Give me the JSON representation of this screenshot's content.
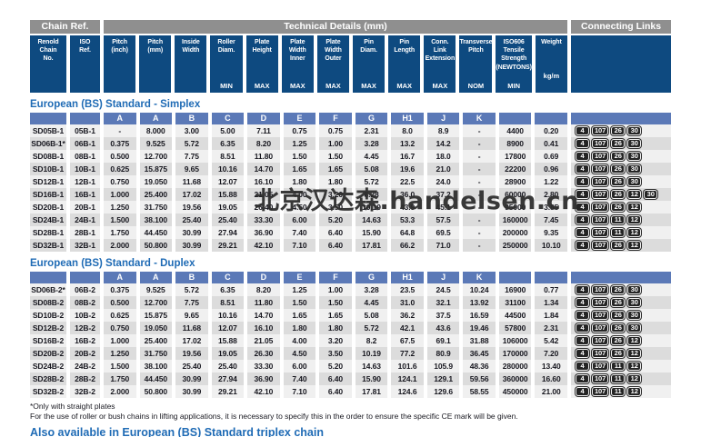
{
  "watermark": "北京汉达森.handelsen.cn",
  "colors": {
    "navy": "#0e4a80",
    "group_gray": "#8f8f8f",
    "letter_blue": "#5b79b7",
    "row_light": "#f0f0f0",
    "row_dark": "#dcdcdc",
    "title_blue": "#1f6bb5",
    "badge_bg": "#242424",
    "cell_text": "#16161e"
  },
  "table": {
    "groups": {
      "chain_ref": "Chain Ref.",
      "technical": "Technical Details (mm)",
      "connecting": "Connecting Links"
    },
    "columns": [
      {
        "title": "Renold\nChain\nNo.",
        "sub": "",
        "letter": ""
      },
      {
        "title": "ISO\nRef.",
        "sub": "",
        "letter": ""
      },
      {
        "title": "Pitch\n(inch)",
        "sub": "",
        "letter": "A"
      },
      {
        "title": "Pitch\n(mm)",
        "sub": "",
        "letter": "A"
      },
      {
        "title": "Inside\nWidth",
        "sub": "",
        "letter": "B"
      },
      {
        "title": "Roller\nDiam.",
        "sub": "MIN",
        "letter": "C"
      },
      {
        "title": "Plate\nHeight",
        "sub": "MAX",
        "letter": "D"
      },
      {
        "title": "Plate\nWidth\nInner",
        "sub": "MAX",
        "letter": "E"
      },
      {
        "title": "Plate\nWidth\nOuter",
        "sub": "MAX",
        "letter": "F"
      },
      {
        "title": "Pin\nDiam.",
        "sub": "MAX",
        "letter": "G"
      },
      {
        "title": "Pin\nLength",
        "sub": "MAX",
        "letter": "H1"
      },
      {
        "title": "Conn. Link\nExtension",
        "sub": "MAX",
        "letter": "J"
      },
      {
        "title": "Transverse\nPitch",
        "sub": "NOM",
        "letter": "K"
      },
      {
        "title": "ISO606\nTensile\nStrength\n(NEWTONS)",
        "sub": "MIN",
        "letter": ""
      },
      {
        "title": "Weight",
        "sub": "kg/m",
        "letter": "",
        "raise_sub": true
      }
    ]
  },
  "sections": [
    {
      "title": "European (BS) Standard - Simplex",
      "rows": [
        {
          "chain_no": "SD05B-1",
          "iso": "05B-1",
          "values": [
            "-",
            "8.000",
            "3.00",
            "5.00",
            "7.11",
            "0.75",
            "0.75",
            "2.31",
            "8.0",
            "8.9",
            "-",
            "4400",
            "0.20"
          ],
          "links": [
            "4",
            "107",
            "26",
            "30"
          ]
        },
        {
          "chain_no": "SD06B-1*",
          "iso": "06B-1",
          "values": [
            "0.375",
            "9.525",
            "5.72",
            "6.35",
            "8.20",
            "1.25",
            "1.00",
            "3.28",
            "13.2",
            "14.2",
            "-",
            "8900",
            "0.41"
          ],
          "links": [
            "4",
            "107",
            "26",
            "30"
          ]
        },
        {
          "chain_no": "SD08B-1",
          "iso": "08B-1",
          "values": [
            "0.500",
            "12.700",
            "7.75",
            "8.51",
            "11.80",
            "1.50",
            "1.50",
            "4.45",
            "16.7",
            "18.0",
            "-",
            "17800",
            "0.69"
          ],
          "links": [
            "4",
            "107",
            "26",
            "30"
          ]
        },
        {
          "chain_no": "SD10B-1",
          "iso": "10B-1",
          "values": [
            "0.625",
            "15.875",
            "9.65",
            "10.16",
            "14.70",
            "1.65",
            "1.65",
            "5.08",
            "19.6",
            "21.0",
            "-",
            "22200",
            "0.96"
          ],
          "links": [
            "4",
            "107",
            "26",
            "30"
          ]
        },
        {
          "chain_no": "SD12B-1",
          "iso": "12B-1",
          "values": [
            "0.750",
            "19.050",
            "11.68",
            "12.07",
            "16.10",
            "1.80",
            "1.80",
            "5.72",
            "22.5",
            "24.0",
            "-",
            "28900",
            "1.22"
          ],
          "links": [
            "4",
            "107",
            "26",
            "30"
          ]
        },
        {
          "chain_no": "SD16B-1",
          "iso": "16B-1",
          "values": [
            "1.000",
            "25.400",
            "17.02",
            "15.88",
            "21.05",
            "4.00",
            "3.20",
            "8.28",
            "36.0",
            "37.2",
            "-",
            "60000",
            "2.80"
          ],
          "links": [
            "4",
            "107",
            "26",
            "12",
            "30"
          ]
        },
        {
          "chain_no": "SD20B-1",
          "iso": "20B-1",
          "values": [
            "1.250",
            "31.750",
            "19.56",
            "19.05",
            "26.40",
            "4.50",
            "3.50",
            "10.19",
            "43.9",
            "45.1",
            "-",
            "95000",
            "3.85"
          ],
          "links": [
            "4",
            "107",
            "26",
            "12"
          ]
        },
        {
          "chain_no": "SD24B-1",
          "iso": "24B-1",
          "values": [
            "1.500",
            "38.100",
            "25.40",
            "25.40",
            "33.30",
            "6.00",
            "5.20",
            "14.63",
            "53.3",
            "57.5",
            "-",
            "160000",
            "7.45"
          ],
          "links": [
            "4",
            "107",
            "11",
            "12"
          ]
        },
        {
          "chain_no": "SD28B-1",
          "iso": "28B-1",
          "values": [
            "1.750",
            "44.450",
            "30.99",
            "27.94",
            "36.90",
            "7.40",
            "6.40",
            "15.90",
            "64.8",
            "69.5",
            "-",
            "200000",
            "9.35"
          ],
          "links": [
            "4",
            "107",
            "11",
            "12"
          ]
        },
        {
          "chain_no": "SD32B-1",
          "iso": "32B-1",
          "values": [
            "2.000",
            "50.800",
            "30.99",
            "29.21",
            "42.10",
            "7.10",
            "6.40",
            "17.81",
            "66.2",
            "71.0",
            "-",
            "250000",
            "10.10"
          ],
          "links": [
            "4",
            "107",
            "26",
            "12"
          ]
        }
      ]
    },
    {
      "title": "European (BS) Standard - Duplex",
      "rows": [
        {
          "chain_no": "SD06B-2*",
          "iso": "06B-2",
          "values": [
            "0.375",
            "9.525",
            "5.72",
            "6.35",
            "8.20",
            "1.25",
            "1.00",
            "3.28",
            "23.5",
            "24.5",
            "10.24",
            "16900",
            "0.77"
          ],
          "links": [
            "4",
            "107",
            "26",
            "30"
          ]
        },
        {
          "chain_no": "SD08B-2",
          "iso": "08B-2",
          "values": [
            "0.500",
            "12.700",
            "7.75",
            "8.51",
            "11.80",
            "1.50",
            "1.50",
            "4.45",
            "31.0",
            "32.1",
            "13.92",
            "31100",
            "1.34"
          ],
          "links": [
            "4",
            "107",
            "26",
            "30"
          ]
        },
        {
          "chain_no": "SD10B-2",
          "iso": "10B-2",
          "values": [
            "0.625",
            "15.875",
            "9.65",
            "10.16",
            "14.70",
            "1.65",
            "1.65",
            "5.08",
            "36.2",
            "37.5",
            "16.59",
            "44500",
            "1.84"
          ],
          "links": [
            "4",
            "107",
            "26",
            "30"
          ]
        },
        {
          "chain_no": "SD12B-2",
          "iso": "12B-2",
          "values": [
            "0.750",
            "19.050",
            "11.68",
            "12.07",
            "16.10",
            "1.80",
            "1.80",
            "5.72",
            "42.1",
            "43.6",
            "19.46",
            "57800",
            "2.31"
          ],
          "links": [
            "4",
            "107",
            "26",
            "30"
          ]
        },
        {
          "chain_no": "SD16B-2",
          "iso": "16B-2",
          "values": [
            "1.000",
            "25.400",
            "17.02",
            "15.88",
            "21.05",
            "4.00",
            "3.20",
            "8.2",
            "67.5",
            "69.1",
            "31.88",
            "106000",
            "5.42"
          ],
          "links": [
            "4",
            "107",
            "26",
            "12"
          ]
        },
        {
          "chain_no": "SD20B-2",
          "iso": "20B-2",
          "values": [
            "1.250",
            "31.750",
            "19.56",
            "19.05",
            "26.30",
            "4.50",
            "3.50",
            "10.19",
            "77.2",
            "80.9",
            "36.45",
            "170000",
            "7.20"
          ],
          "links": [
            "4",
            "107",
            "26",
            "12"
          ]
        },
        {
          "chain_no": "SD24B-2",
          "iso": "24B-2",
          "values": [
            "1.500",
            "38.100",
            "25.40",
            "25.40",
            "33.30",
            "6.00",
            "5.20",
            "14.63",
            "101.6",
            "105.9",
            "48.36",
            "280000",
            "13.40"
          ],
          "links": [
            "4",
            "107",
            "11",
            "12"
          ]
        },
        {
          "chain_no": "SD28B-2",
          "iso": "28B-2",
          "values": [
            "1.750",
            "44.450",
            "30.99",
            "27.94",
            "36.90",
            "7.40",
            "6.40",
            "15.90",
            "124.1",
            "129.1",
            "59.56",
            "360000",
            "16.60"
          ],
          "links": [
            "4",
            "107",
            "11",
            "12"
          ]
        },
        {
          "chain_no": "SD32B-2",
          "iso": "32B-2",
          "values": [
            "2.000",
            "50.800",
            "30.99",
            "29.21",
            "42.10",
            "7.10",
            "6.40",
            "17.81",
            "124.6",
            "129.6",
            "58.55",
            "450000",
            "21.00"
          ],
          "links": [
            "4",
            "107",
            "11",
            "12"
          ]
        }
      ]
    }
  ],
  "footnotes": {
    "note1": "*Only with straight plates",
    "note2": "For the use of roller or bush chains in lifting applications, it is necessary to specify this in the order to ensure the specific CE mark will be given."
  },
  "also_available": "Also available in European (BS) Standard triplex chain"
}
